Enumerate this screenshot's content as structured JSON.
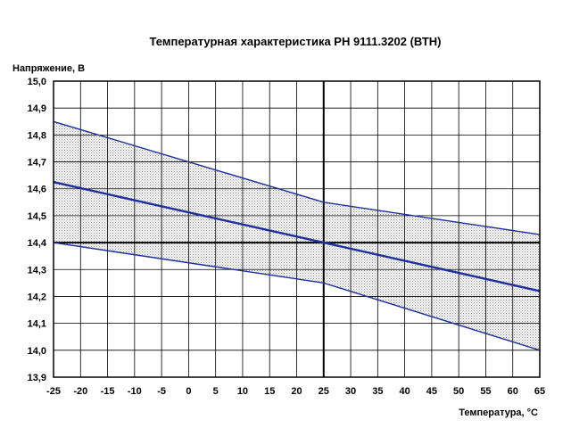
{
  "chart_data": {
    "type": "line",
    "title": "Температурная  характеристика  РН  9111.3202 (ВТН)",
    "xlabel": "Температура, °С",
    "ylabel": "Напряжение, В",
    "xlim": [
      -25,
      65
    ],
    "ylim": [
      13.9,
      15.0
    ],
    "x_ticks": [
      "-25",
      "-20",
      "-15",
      "-10",
      "-5",
      "0",
      "5",
      "10",
      "15",
      "20",
      "25",
      "30",
      "35",
      "40",
      "45",
      "50",
      "55",
      "60",
      "65"
    ],
    "y_ticks": [
      "13,9",
      "14,0",
      "14,1",
      "14,2",
      "14,3",
      "14,4",
      "14,5",
      "14,6",
      "14,7",
      "14,8",
      "14,9",
      "15,0"
    ],
    "grid": true,
    "reference_lines": {
      "x": 25,
      "y": 14.4
    },
    "series": [
      {
        "values": [
          [
            -25,
            14.85
          ],
          [
            25,
            14.55
          ],
          [
            65,
            14.43
          ]
        ]
      },
      {
        "values": [
          [
            -25,
            14.625
          ],
          [
            25,
            14.4
          ],
          [
            65,
            14.22
          ]
        ]
      },
      {
        "values": [
          [
            -25,
            14.4
          ],
          [
            25,
            14.25
          ],
          [
            65,
            14.0
          ]
        ]
      }
    ],
    "band_between": [
      0,
      2
    ],
    "colors": {
      "line": "#1c2fa0",
      "grid": "#000000",
      "band": "#9a9a9a"
    }
  }
}
